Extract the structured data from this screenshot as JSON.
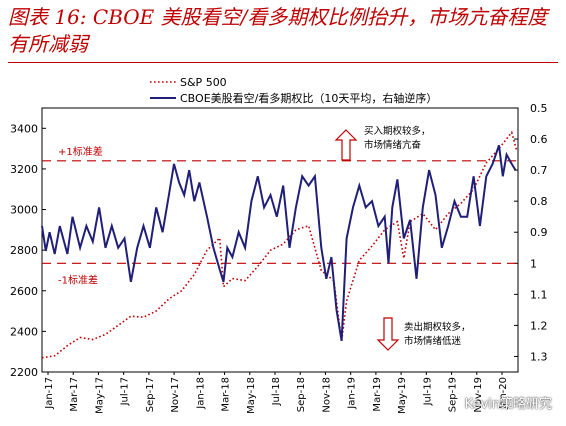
{
  "title": "图表 16: CBOE 美股看空/看多期权比例抬升，市场亢奋程度有所减弱",
  "watermark": "Kevin策略研究",
  "colors": {
    "title": "#c00000",
    "sp500": "#c00000",
    "ratio": "#1f1f7a",
    "band": "#c00000",
    "arrow": "#c00000"
  },
  "chart_data": {
    "type": "line",
    "legend": {
      "placement": "top-left",
      "entries": [
        "S&P 500",
        "CBOE美股看空/看多期权比（10天平均，右轴逆序）"
      ]
    },
    "x_tick_labels": [
      "Jan-17",
      "Mar-17",
      "May-17",
      "Jul-17",
      "Sep-17",
      "Nov-17",
      "Jan-18",
      "Mar-18",
      "May-18",
      "Jul-18",
      "Sep-18",
      "Nov-18",
      "Jan-19",
      "Mar-19",
      "May-19",
      "Jul-19",
      "Sep-19",
      "Nov-19",
      "Jan-20"
    ],
    "left_axis": {
      "range": [
        2200,
        3500
      ],
      "ticks": [
        2200,
        2400,
        2600,
        2800,
        3000,
        3200,
        3400
      ]
    },
    "right_axis": {
      "range": [
        0.5,
        1.35
      ],
      "inverted": true,
      "ticks": [
        "0.5",
        "0.6",
        "0.7",
        "0.8",
        "0.9",
        "1",
        "1.1",
        "1.2",
        "1.3"
      ]
    },
    "series": [
      {
        "name": "S&P 500",
        "axis": "left",
        "style": "dotted",
        "points": [
          [
            0,
            2270
          ],
          [
            1,
            2280
          ],
          [
            2,
            2330
          ],
          [
            3,
            2370
          ],
          [
            4,
            2360
          ],
          [
            5,
            2385
          ],
          [
            6,
            2430
          ],
          [
            7,
            2475
          ],
          [
            8,
            2470
          ],
          [
            9,
            2500
          ],
          [
            10,
            2560
          ],
          [
            11,
            2600
          ],
          [
            12,
            2680
          ],
          [
            13,
            2800
          ],
          [
            14,
            2860
          ],
          [
            14.3,
            2620
          ],
          [
            15,
            2660
          ],
          [
            16,
            2650
          ],
          [
            17,
            2720
          ],
          [
            18,
            2800
          ],
          [
            19,
            2830
          ],
          [
            20,
            2900
          ],
          [
            21,
            2920
          ],
          [
            22,
            2700
          ],
          [
            23,
            2650
          ],
          [
            23.6,
            2350
          ],
          [
            24,
            2550
          ],
          [
            25,
            2750
          ],
          [
            26,
            2820
          ],
          [
            27,
            2900
          ],
          [
            28,
            2940
          ],
          [
            28.5,
            2760
          ],
          [
            29,
            2940
          ],
          [
            30,
            2980
          ],
          [
            31,
            2900
          ],
          [
            32,
            2980
          ],
          [
            33,
            3030
          ],
          [
            34,
            3100
          ],
          [
            35,
            3230
          ],
          [
            36,
            3300
          ],
          [
            37,
            3380
          ],
          [
            37.4,
            3290
          ]
        ]
      },
      {
        "name": "CBOE美股看空/看多期权比（10天平均，右轴逆序）",
        "axis": "right",
        "style": "solid",
        "points": [
          [
            0,
            0.88
          ],
          [
            0.3,
            0.96
          ],
          [
            0.6,
            0.9
          ],
          [
            1,
            0.97
          ],
          [
            1.4,
            0.88
          ],
          [
            2,
            0.97
          ],
          [
            2.4,
            0.85
          ],
          [
            3,
            0.95
          ],
          [
            3.5,
            0.88
          ],
          [
            4,
            0.93
          ],
          [
            4.5,
            0.82
          ],
          [
            5,
            0.95
          ],
          [
            5.5,
            0.88
          ],
          [
            6,
            0.95
          ],
          [
            6.5,
            0.92
          ],
          [
            7,
            1.06
          ],
          [
            7.5,
            0.95
          ],
          [
            8,
            0.88
          ],
          [
            8.5,
            0.95
          ],
          [
            9,
            0.82
          ],
          [
            9.5,
            0.9
          ],
          [
            10,
            0.78
          ],
          [
            10.4,
            0.68
          ],
          [
            10.8,
            0.74
          ],
          [
            11.2,
            0.78
          ],
          [
            11.6,
            0.7
          ],
          [
            12,
            0.8
          ],
          [
            12.4,
            0.74
          ],
          [
            13,
            0.85
          ],
          [
            13.5,
            0.95
          ],
          [
            14,
            1.02
          ],
          [
            14.3,
            1.06
          ],
          [
            14.6,
            0.95
          ],
          [
            15,
            0.98
          ],
          [
            15.5,
            0.9
          ],
          [
            16,
            0.95
          ],
          [
            16.5,
            0.8
          ],
          [
            17,
            0.72
          ],
          [
            17.5,
            0.82
          ],
          [
            18,
            0.78
          ],
          [
            18.5,
            0.85
          ],
          [
            19,
            0.75
          ],
          [
            19.5,
            0.95
          ],
          [
            20,
            0.82
          ],
          [
            20.5,
            0.72
          ],
          [
            21,
            0.75
          ],
          [
            21.5,
            0.72
          ],
          [
            22,
            0.95
          ],
          [
            22.4,
            1.05
          ],
          [
            22.8,
            0.98
          ],
          [
            23.2,
            1.15
          ],
          [
            23.6,
            1.25
          ],
          [
            24,
            0.92
          ],
          [
            24.5,
            0.82
          ],
          [
            25,
            0.75
          ],
          [
            25.5,
            0.82
          ],
          [
            26,
            0.8
          ],
          [
            26.5,
            0.88
          ],
          [
            27,
            0.85
          ],
          [
            27.3,
            1.0
          ],
          [
            27.6,
            0.82
          ],
          [
            28,
            0.73
          ],
          [
            28.5,
            0.92
          ],
          [
            29,
            0.86
          ],
          [
            29.5,
            1.05
          ],
          [
            30,
            0.82
          ],
          [
            30.5,
            0.7
          ],
          [
            31,
            0.78
          ],
          [
            31.5,
            0.95
          ],
          [
            32,
            0.88
          ],
          [
            32.5,
            0.8
          ],
          [
            33,
            0.85
          ],
          [
            33.5,
            0.85
          ],
          [
            34,
            0.72
          ],
          [
            34.5,
            0.88
          ],
          [
            35,
            0.72
          ],
          [
            35.5,
            0.68
          ],
          [
            36,
            0.62
          ],
          [
            36.3,
            0.72
          ],
          [
            36.6,
            0.65
          ],
          [
            37,
            0.68
          ],
          [
            37.3,
            0.7
          ]
        ]
      }
    ],
    "bands": [
      {
        "label": "+1标准差",
        "right_axis_value": 0.67
      },
      {
        "label": "-1标准差",
        "right_axis_value": 1.0
      }
    ],
    "annotations": [
      {
        "text": [
          "买入期权较多，",
          "市场情绪亢奋"
        ],
        "arrow": "up"
      },
      {
        "text": [
          "卖出期权较多，",
          "市场情绪低迷"
        ],
        "arrow": "down"
      }
    ]
  }
}
